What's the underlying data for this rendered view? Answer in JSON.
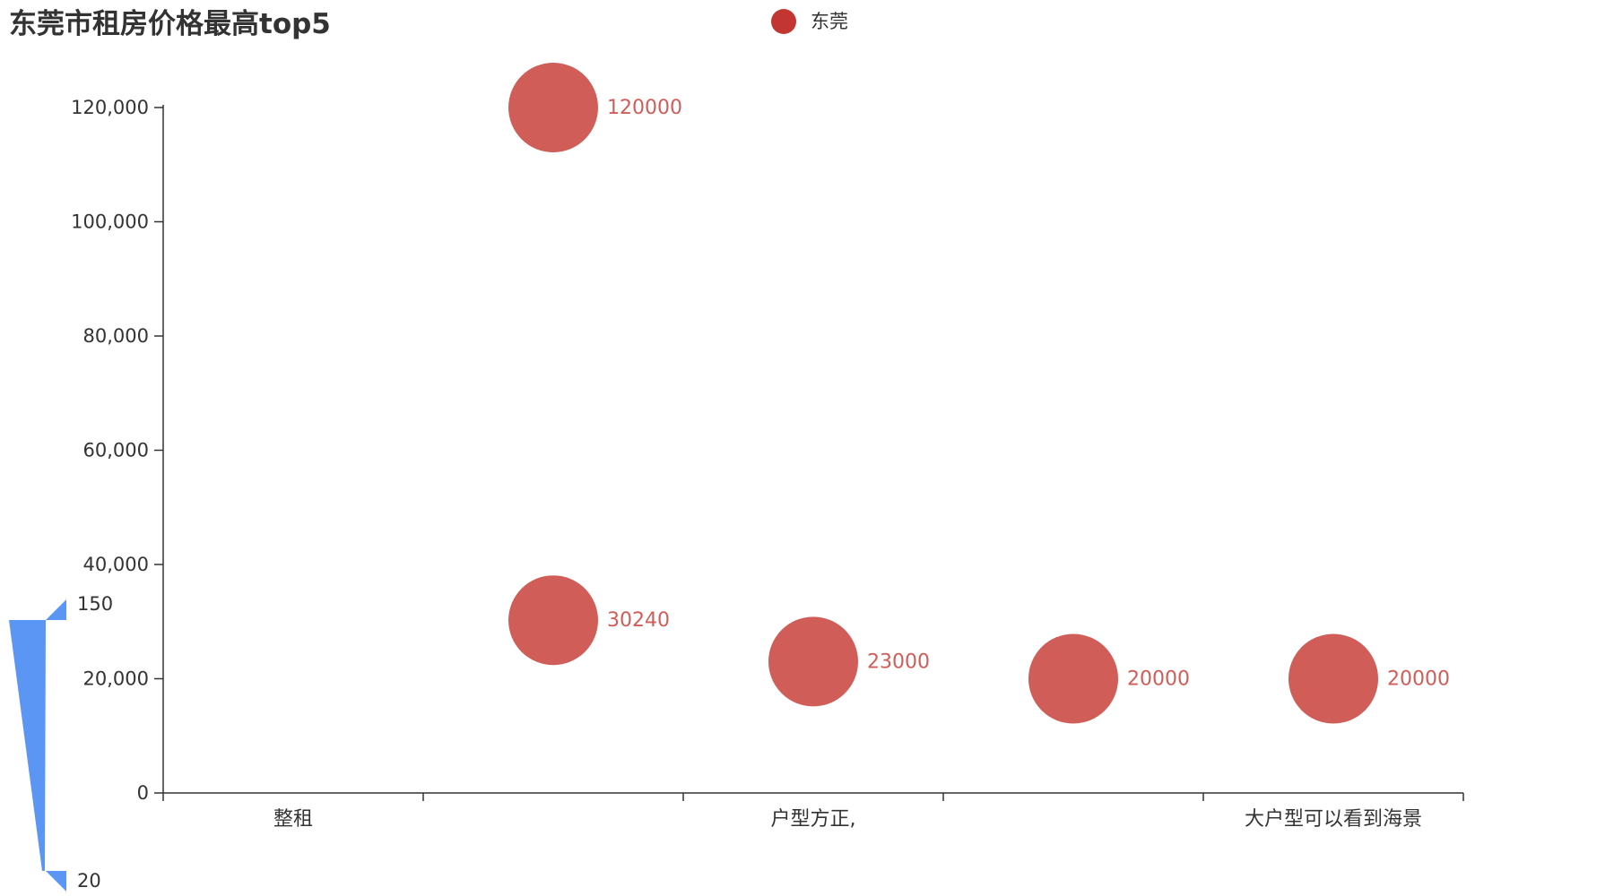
{
  "chart_data": {
    "type": "scatter",
    "title": "东莞市租房价格最高top5",
    "categories": [
      "整租",
      "",
      "户型方正,",
      "",
      "大户型可以看到海景"
    ],
    "series": [
      {
        "name": "东莞",
        "color": "#c23531",
        "point_color": "#d05d58",
        "points": [
          {
            "category_index": 1,
            "value": 120000,
            "label": "120000"
          },
          {
            "category_index": 1,
            "value": 30240,
            "label": "30240"
          },
          {
            "category_index": 2,
            "value": 23000,
            "label": "23000"
          },
          {
            "category_index": 3,
            "value": 20000,
            "label": "20000"
          },
          {
            "category_index": 4,
            "value": 20000,
            "label": "20000"
          }
        ]
      }
    ],
    "ylim": [
      0,
      120000
    ],
    "yticks": [
      0,
      20000,
      40000,
      60000,
      80000,
      100000,
      120000
    ],
    "ytick_labels": [
      "0",
      "20,000",
      "40,000",
      "60,000",
      "80,000",
      "100,000",
      "120,000"
    ],
    "xlabel": "",
    "ylabel": "",
    "grid": false,
    "legend_position": "top-center",
    "visual_map": {
      "max_label": "150",
      "min_label": "20",
      "color": "#5b96f5"
    }
  }
}
